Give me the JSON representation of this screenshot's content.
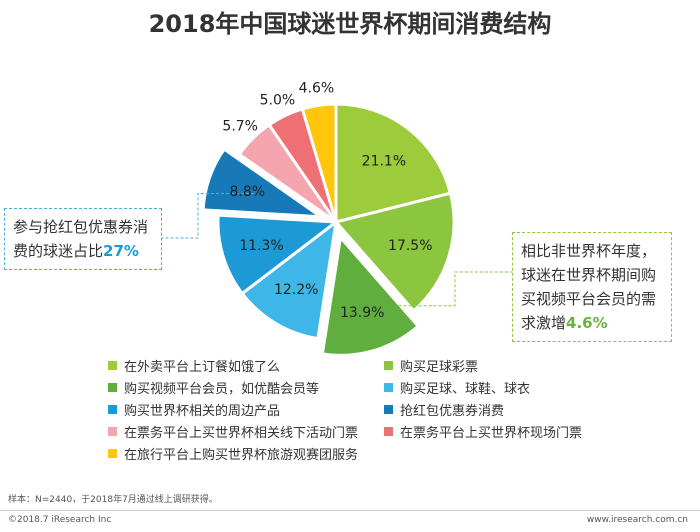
{
  "title": "2018年中国球迷世界杯期间消费结构",
  "callout_left": {
    "text": "参与抢红包优惠券消费的球迷占比",
    "value": "27%"
  },
  "callout_right": {
    "text": "相比非世界杯年度，球迷在世界杯期间购买视频平台会员的需求激增",
    "value": "4.6%"
  },
  "note": "样本：N=2440，于2018年7月通过线上调研获得。",
  "footer_left": "©2018.7 iResearch Inc",
  "footer_right": "www.iresearch.com.cn",
  "colors": {
    "accent_blue": "#1a9ad6",
    "accent_green": "#6ab23e"
  },
  "chart_data": {
    "type": "pie",
    "title": "2018年中国球迷世界杯期间消费结构",
    "slices": [
      {
        "name": "在外卖平台上订餐如饿了么",
        "value": 21.1,
        "label": "21.1%",
        "color": "#9ccb3b",
        "exploded": false
      },
      {
        "name": "购买足球彩票",
        "value": 17.5,
        "label": "17.5%",
        "color": "#8cc63f",
        "exploded": false
      },
      {
        "name": "购买视频平台会员，如优酷会员等",
        "value": 13.9,
        "label": "13.9%",
        "color": "#5fae3e",
        "exploded": true
      },
      {
        "name": "购买足球、球鞋、球衣",
        "value": 12.2,
        "label": "12.2%",
        "color": "#3fb6e8",
        "exploded": false
      },
      {
        "name": "购买世界杯相关的周边产品",
        "value": 11.3,
        "label": "11.3%",
        "color": "#1c9ad6",
        "exploded": false
      },
      {
        "name": "抢红包优惠券消费",
        "value": 8.8,
        "label": "8.8%",
        "color": "#1779b8",
        "exploded": true
      },
      {
        "name": "在票务平台上买世界杯相关线下活动门票",
        "value": 5.7,
        "label": "5.7%",
        "color": "#f4a5ad",
        "exploded": false
      },
      {
        "name": "在票务平台上买世界杯现场门票",
        "value": 5.0,
        "label": "5.0%",
        "color": "#ee6f74",
        "exploded": false
      },
      {
        "name": "在旅行平台上购买世界杯旅游观赛团服务",
        "value": 4.6,
        "label": "4.6%",
        "color": "#ffc60b",
        "exploded": false
      }
    ],
    "legend_position": "bottom"
  }
}
